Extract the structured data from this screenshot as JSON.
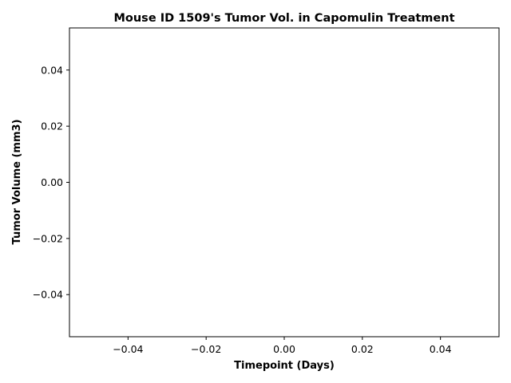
{
  "chart_data": {
    "type": "line",
    "title": "Mouse ID 1509's Tumor Vol. in Capomulin Treatment",
    "xlabel": "Timepoint (Days)",
    "ylabel": "Tumor Volume (mm3)",
    "series": [
      {
        "values": []
      }
    ],
    "x": [],
    "xlim": [
      -0.055,
      0.055
    ],
    "ylim": [
      -0.055,
      0.055
    ],
    "x_ticks": [
      -0.04,
      -0.02,
      0.0,
      0.02,
      0.04
    ],
    "y_ticks": [
      -0.04,
      -0.02,
      0.0,
      0.02,
      0.04
    ],
    "x_tick_labels": [
      "−0.04",
      "−0.02",
      "0.00",
      "0.02",
      "0.04"
    ],
    "y_tick_labels": [
      "−0.04",
      "−0.02",
      "0.00",
      "0.02",
      "0.04"
    ],
    "grid": false,
    "legend": "none"
  }
}
